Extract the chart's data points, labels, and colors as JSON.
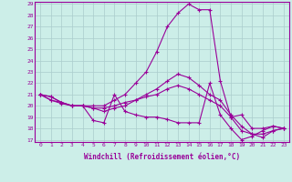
{
  "xlabel": "Windchill (Refroidissement éolien,°C)",
  "background_color": "#cceee8",
  "line_color": "#990099",
  "grid_color": "#aacccc",
  "x_hours": [
    0,
    1,
    2,
    3,
    4,
    5,
    6,
    7,
    8,
    9,
    10,
    11,
    12,
    13,
    14,
    15,
    16,
    17,
    18,
    19,
    20,
    21,
    22,
    23
  ],
  "series": [
    [
      21.0,
      20.8,
      20.3,
      20.0,
      20.0,
      18.7,
      18.5,
      21.0,
      19.5,
      19.2,
      19.0,
      19.0,
      18.8,
      18.5,
      18.5,
      18.5,
      22.0,
      19.2,
      18.0,
      17.0,
      17.3,
      17.8,
      18.2,
      18.0
    ],
    [
      21.0,
      20.8,
      20.3,
      20.0,
      20.0,
      20.0,
      20.0,
      20.5,
      21.0,
      22.0,
      23.0,
      24.8,
      27.0,
      28.2,
      29.0,
      28.5,
      28.5,
      22.2,
      19.0,
      19.2,
      18.0,
      18.0,
      18.2,
      18.0
    ],
    [
      21.0,
      20.5,
      20.2,
      20.0,
      20.0,
      19.8,
      19.5,
      19.8,
      20.0,
      20.5,
      21.0,
      21.5,
      22.2,
      22.8,
      22.5,
      21.8,
      21.0,
      20.5,
      19.2,
      18.2,
      17.5,
      17.2,
      17.8,
      18.0
    ],
    [
      21.0,
      20.5,
      20.3,
      20.0,
      20.0,
      19.8,
      19.8,
      20.0,
      20.3,
      20.5,
      20.8,
      21.0,
      21.5,
      21.8,
      21.5,
      21.0,
      20.5,
      20.0,
      19.0,
      17.8,
      17.5,
      17.5,
      17.8,
      18.0
    ]
  ],
  "ylim": [
    17,
    29
  ],
  "yticks": [
    17,
    18,
    19,
    20,
    21,
    22,
    23,
    24,
    25,
    26,
    27,
    28,
    29
  ],
  "xlim": [
    -0.5,
    23.5
  ],
  "xticks": [
    0,
    1,
    2,
    3,
    4,
    5,
    6,
    7,
    8,
    9,
    10,
    11,
    12,
    13,
    14,
    15,
    16,
    17,
    18,
    19,
    20,
    21,
    22,
    23
  ],
  "marker": "+",
  "markersize": 2.5,
  "linewidth": 0.8,
  "tick_fontsize": 4.5,
  "xlabel_fontsize": 5.5
}
